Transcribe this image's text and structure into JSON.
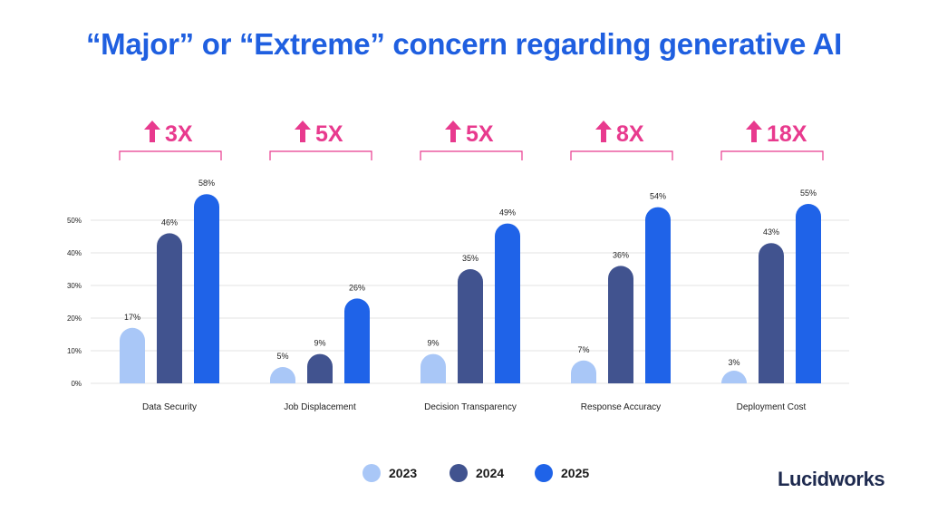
{
  "title": "“Major” or “Extreme” concern regarding generative AI",
  "brand": "Lucidworks",
  "colors": {
    "title": "#1f5fe0",
    "brand": "#1e2a4f",
    "multiplier": "#e83a8e",
    "grid": "#e3e3e3",
    "axis_text": "#222222",
    "series": [
      "#a9c7f7",
      "#41538f",
      "#1f63e8"
    ]
  },
  "legend": [
    {
      "label": "2023",
      "color": "#a9c7f7"
    },
    {
      "label": "2024",
      "color": "#41538f"
    },
    {
      "label": "2025",
      "color": "#1f63e8"
    }
  ],
  "chart_data": {
    "type": "bar",
    "title": "“Major” or “Extreme” concern regarding generative AI",
    "categories": [
      "Data Security",
      "Job Displacement",
      "Decision Transparency",
      "Response Accuracy",
      "Deployment Cost"
    ],
    "series": [
      {
        "name": "2023",
        "values": [
          17,
          5,
          9,
          7,
          3
        ],
        "labels": [
          "17%",
          "5%",
          "9%",
          "7%",
          "3%"
        ]
      },
      {
        "name": "2024",
        "values": [
          46,
          9,
          35,
          36,
          43
        ],
        "labels": [
          "46%",
          "9%",
          "35%",
          "36%",
          "43%"
        ]
      },
      {
        "name": "2025",
        "values": [
          58,
          26,
          49,
          54,
          55
        ],
        "labels": [
          "58%",
          "26%",
          "49%",
          "54%",
          "55%"
        ]
      }
    ],
    "multipliers": [
      "3X",
      "5X",
      "5X",
      "8X",
      "18X"
    ],
    "multiplier_arrow": "up-arrow",
    "y_ticks": [
      0,
      10,
      20,
      30,
      40,
      50
    ],
    "y_tick_labels": [
      "0%",
      "10%",
      "20%",
      "30%",
      "40%",
      "50%"
    ],
    "ylim": [
      0,
      60
    ],
    "grid": true,
    "legend_position": "bottom"
  }
}
